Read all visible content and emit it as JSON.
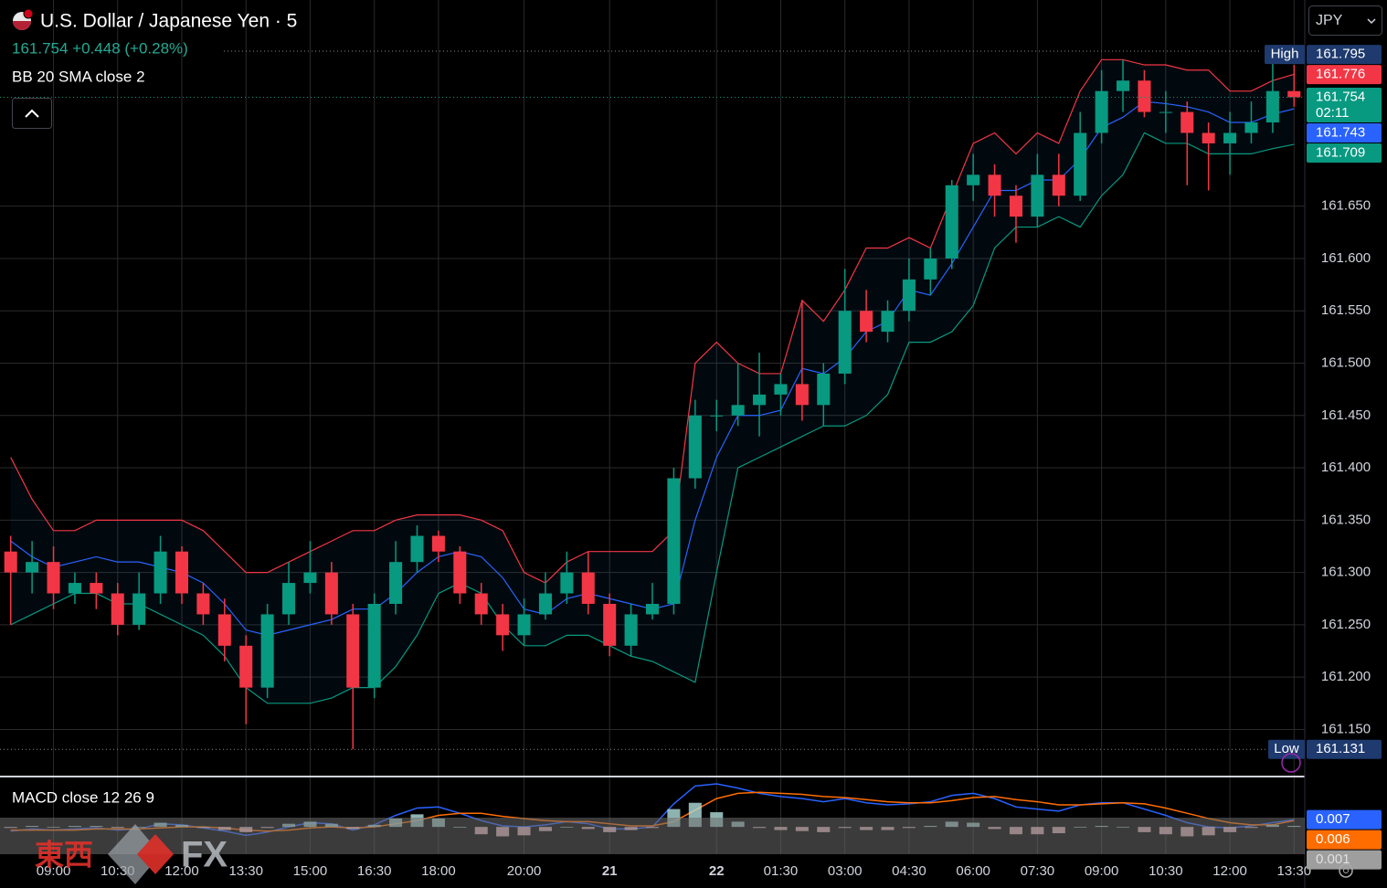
{
  "header": {
    "title": "U.S. Dollar / Japanese Yen · 5",
    "quote": "161.754 +0.448 (+0.28%)",
    "indicator": "BB 20 SMA close 2",
    "currency": "JPY",
    "countdown": "02:11",
    "watermark": [
      "東西",
      "FX"
    ]
  },
  "chart_data": [
    {
      "type": "candlestick",
      "categories": [
        null,
        null,
        "09:00",
        null,
        null,
        "10:30",
        null,
        null,
        "12:00",
        null,
        null,
        "13:30",
        null,
        null,
        "15:00",
        null,
        null,
        "16:30",
        null,
        null,
        "18:00",
        null,
        null,
        null,
        "20:00",
        null,
        null,
        null,
        "21",
        null,
        null,
        null,
        null,
        "22",
        null,
        null,
        "01:30",
        null,
        null,
        "03:00",
        null,
        null,
        "04:30",
        null,
        null,
        "06:00",
        null,
        null,
        "07:30",
        null,
        null,
        "09:00",
        null,
        null,
        "10:30",
        null,
        null,
        "12:00",
        null,
        null,
        "13:30"
      ],
      "open": [
        161.32,
        161.3,
        161.31,
        161.28,
        161.29,
        161.28,
        161.25,
        161.28,
        161.32,
        161.28,
        161.26,
        161.23,
        161.19,
        161.26,
        161.29,
        161.3,
        161.26,
        161.19,
        161.27,
        161.31,
        161.335,
        161.32,
        161.28,
        161.26,
        161.24,
        161.26,
        161.28,
        161.3,
        161.27,
        161.23,
        161.26,
        161.27,
        161.39,
        161.45,
        161.45,
        161.46,
        161.47,
        161.48,
        161.46,
        161.49,
        161.55,
        161.53,
        161.55,
        161.58,
        161.6,
        161.67,
        161.68,
        161.66,
        161.64,
        161.68,
        161.66,
        161.72,
        161.76,
        161.77,
        161.74,
        161.74,
        161.72,
        161.71,
        161.72,
        161.73,
        161.76
      ],
      "high": [
        161.335,
        161.33,
        161.325,
        161.3,
        161.3,
        161.29,
        161.3,
        161.335,
        161.325,
        161.29,
        161.275,
        161.24,
        161.27,
        161.31,
        161.33,
        161.31,
        161.27,
        161.28,
        161.33,
        161.345,
        161.34,
        161.325,
        161.29,
        161.27,
        161.275,
        161.3,
        161.32,
        161.32,
        161.28,
        161.27,
        161.29,
        161.4,
        161.465,
        161.465,
        161.5,
        161.51,
        161.49,
        161.56,
        161.5,
        161.59,
        161.57,
        161.56,
        161.6,
        161.61,
        161.675,
        161.7,
        161.69,
        161.67,
        161.7,
        161.7,
        161.74,
        161.78,
        161.79,
        161.78,
        161.76,
        161.75,
        161.73,
        161.74,
        161.75,
        161.795,
        161.785
      ],
      "low": [
        161.25,
        161.28,
        161.265,
        161.27,
        161.265,
        161.24,
        161.245,
        161.27,
        161.27,
        161.25,
        161.215,
        161.155,
        161.18,
        161.25,
        161.28,
        161.25,
        161.131,
        161.18,
        161.26,
        161.3,
        161.31,
        161.27,
        161.25,
        161.225,
        161.23,
        161.255,
        161.27,
        161.26,
        161.22,
        161.22,
        161.255,
        161.26,
        161.38,
        161.435,
        161.44,
        161.43,
        161.45,
        161.445,
        161.44,
        161.48,
        161.52,
        161.52,
        161.54,
        161.565,
        161.59,
        161.655,
        161.64,
        161.615,
        161.63,
        161.65,
        161.655,
        161.71,
        161.74,
        161.735,
        161.72,
        161.67,
        161.665,
        161.68,
        161.71,
        161.72,
        161.745
      ],
      "close": [
        161.3,
        161.31,
        161.28,
        161.29,
        161.28,
        161.25,
        161.28,
        161.32,
        161.28,
        161.26,
        161.23,
        161.19,
        161.26,
        161.29,
        161.3,
        161.26,
        161.19,
        161.27,
        161.31,
        161.335,
        161.32,
        161.28,
        161.26,
        161.24,
        161.26,
        161.28,
        161.3,
        161.27,
        161.23,
        161.26,
        161.27,
        161.39,
        161.45,
        161.45,
        161.46,
        161.47,
        161.48,
        161.46,
        161.49,
        161.55,
        161.53,
        161.55,
        161.58,
        161.6,
        161.67,
        161.68,
        161.66,
        161.64,
        161.68,
        161.66,
        161.72,
        161.76,
        161.77,
        161.74,
        161.74,
        161.72,
        161.71,
        161.72,
        161.73,
        161.76,
        161.754
      ],
      "up_color": "#089981",
      "down_color": "#f23645",
      "bands": {
        "upper": {
          "color": "#f23645",
          "values": [
            161.41,
            161.37,
            161.34,
            161.34,
            161.35,
            161.35,
            161.35,
            161.35,
            161.35,
            161.34,
            161.32,
            161.3,
            161.3,
            161.31,
            161.32,
            161.33,
            161.34,
            161.34,
            161.35,
            161.355,
            161.355,
            161.355,
            161.35,
            161.34,
            161.3,
            161.29,
            161.31,
            161.32,
            161.32,
            161.32,
            161.32,
            161.34,
            161.5,
            161.52,
            161.5,
            161.49,
            161.49,
            161.56,
            161.54,
            161.57,
            161.61,
            161.61,
            161.62,
            161.61,
            161.66,
            161.71,
            161.72,
            161.7,
            161.72,
            161.71,
            161.76,
            161.79,
            161.79,
            161.785,
            161.785,
            161.78,
            161.78,
            161.76,
            161.76,
            161.77,
            161.776
          ]
        },
        "middle": {
          "color": "#2962ff",
          "values": [
            161.33,
            161.315,
            161.305,
            161.31,
            161.315,
            161.31,
            161.31,
            161.305,
            161.3,
            161.29,
            161.27,
            161.245,
            161.24,
            161.245,
            161.25,
            161.255,
            161.265,
            161.265,
            161.28,
            161.3,
            161.315,
            161.32,
            161.315,
            161.295,
            161.265,
            161.26,
            161.275,
            161.28,
            161.275,
            161.27,
            161.265,
            161.27,
            161.35,
            161.41,
            161.45,
            161.45,
            161.455,
            161.495,
            161.49,
            161.505,
            161.53,
            161.54,
            161.57,
            161.565,
            161.595,
            161.63,
            161.665,
            161.665,
            161.675,
            161.675,
            161.695,
            161.725,
            161.735,
            161.75,
            161.748,
            161.745,
            161.74,
            161.73,
            161.73,
            161.738,
            161.743
          ]
        },
        "lower": {
          "color": "#089981",
          "values": [
            161.25,
            161.26,
            161.27,
            161.28,
            161.28,
            161.27,
            161.27,
            161.26,
            161.25,
            161.24,
            161.22,
            161.19,
            161.175,
            161.175,
            161.175,
            161.18,
            161.19,
            161.19,
            161.21,
            161.24,
            161.28,
            161.29,
            161.28,
            161.25,
            161.23,
            161.23,
            161.24,
            161.24,
            161.23,
            161.22,
            161.215,
            161.205,
            161.195,
            161.3,
            161.4,
            161.41,
            161.42,
            161.43,
            161.44,
            161.44,
            161.45,
            161.47,
            161.52,
            161.52,
            161.53,
            161.555,
            161.61,
            161.63,
            161.63,
            161.64,
            161.63,
            161.66,
            161.68,
            161.72,
            161.71,
            161.71,
            161.7,
            161.7,
            161.7,
            161.705,
            161.709
          ]
        },
        "fill": "#2196f3"
      },
      "high_label": "High",
      "high_value": 161.795,
      "low_label": "Low",
      "low_value": 161.131,
      "ylim": [
        161.105,
        161.847
      ],
      "yticks": [
        {
          "value": 161.15,
          "label": "161.150"
        },
        {
          "value": 161.2,
          "label": "161.200"
        },
        {
          "value": 161.25,
          "label": "161.250"
        },
        {
          "value": 161.3,
          "label": "161.300"
        },
        {
          "value": 161.35,
          "label": "161.350"
        },
        {
          "value": 161.4,
          "label": "161.400"
        },
        {
          "value": 161.45,
          "label": "161.450"
        },
        {
          "value": 161.5,
          "label": "161.500"
        },
        {
          "value": 161.55,
          "label": "161.550"
        },
        {
          "value": 161.6,
          "label": "161.600"
        },
        {
          "value": 161.65,
          "label": "161.650"
        }
      ],
      "grid": true
    },
    {
      "type": "macd",
      "title": "MACD close 12 26 9",
      "series": [
        {
          "color": "#2962ff",
          "values": [
            -0.004,
            -0.002,
            -0.003,
            -0.002,
            -0.001,
            -0.003,
            -0.002,
            0.003,
            0.002,
            -0.001,
            -0.004,
            -0.008,
            -0.005,
            0.0,
            0.004,
            0.003,
            -0.003,
            0.002,
            0.011,
            0.018,
            0.019,
            0.013,
            0.006,
            0.001,
            0.0,
            0.002,
            0.005,
            0.003,
            -0.002,
            -0.002,
            0.0,
            0.022,
            0.039,
            0.041,
            0.037,
            0.032,
            0.029,
            0.027,
            0.024,
            0.027,
            0.023,
            0.021,
            0.022,
            0.024,
            0.03,
            0.032,
            0.027,
            0.019,
            0.017,
            0.015,
            0.021,
            0.023,
            0.023,
            0.017,
            0.011,
            0.004,
            0.0,
            -0.001,
            0.001,
            0.004,
            0.007
          ]
        },
        {
          "color": "#ff6d00",
          "values": [
            -0.003,
            -0.003,
            -0.003,
            -0.003,
            -0.002,
            -0.002,
            -0.002,
            -0.001,
            0.0,
            0.0,
            -0.001,
            -0.003,
            -0.004,
            -0.003,
            -0.001,
            0.0,
            -0.001,
            0.0,
            0.003,
            0.006,
            0.011,
            0.013,
            0.013,
            0.01,
            0.008,
            0.006,
            0.005,
            0.005,
            0.003,
            0.001,
            0.001,
            0.005,
            0.016,
            0.027,
            0.032,
            0.033,
            0.032,
            0.031,
            0.029,
            0.028,
            0.026,
            0.024,
            0.023,
            0.023,
            0.025,
            0.028,
            0.029,
            0.026,
            0.024,
            0.021,
            0.021,
            0.022,
            0.023,
            0.022,
            0.018,
            0.013,
            0.008,
            0.004,
            0.002,
            0.002,
            0.006
          ]
        },
        {
          "type": "histogram",
          "color": "#b2dfdb",
          "negative_color": "#ffcdd2",
          "values": [
            -0.001,
            0.001,
            0.0,
            0.001,
            0.001,
            -0.001,
            0.0,
            0.004,
            0.002,
            -0.001,
            -0.003,
            -0.005,
            -0.001,
            0.003,
            0.005,
            0.003,
            -0.002,
            0.002,
            0.008,
            0.012,
            0.008,
            0.0,
            -0.007,
            -0.009,
            -0.008,
            -0.004,
            0.0,
            -0.002,
            -0.005,
            -0.003,
            -0.001,
            0.017,
            0.023,
            0.014,
            0.005,
            -0.001,
            -0.003,
            -0.004,
            -0.005,
            -0.001,
            -0.003,
            -0.003,
            -0.001,
            0.001,
            0.005,
            0.004,
            -0.002,
            -0.007,
            -0.007,
            -0.006,
            0.0,
            0.001,
            0.0,
            -0.005,
            -0.007,
            -0.009,
            -0.008,
            -0.005,
            -0.001,
            0.002,
            0.001
          ]
        }
      ],
      "ylim": [
        -0.026,
        0.048
      ]
    }
  ]
}
